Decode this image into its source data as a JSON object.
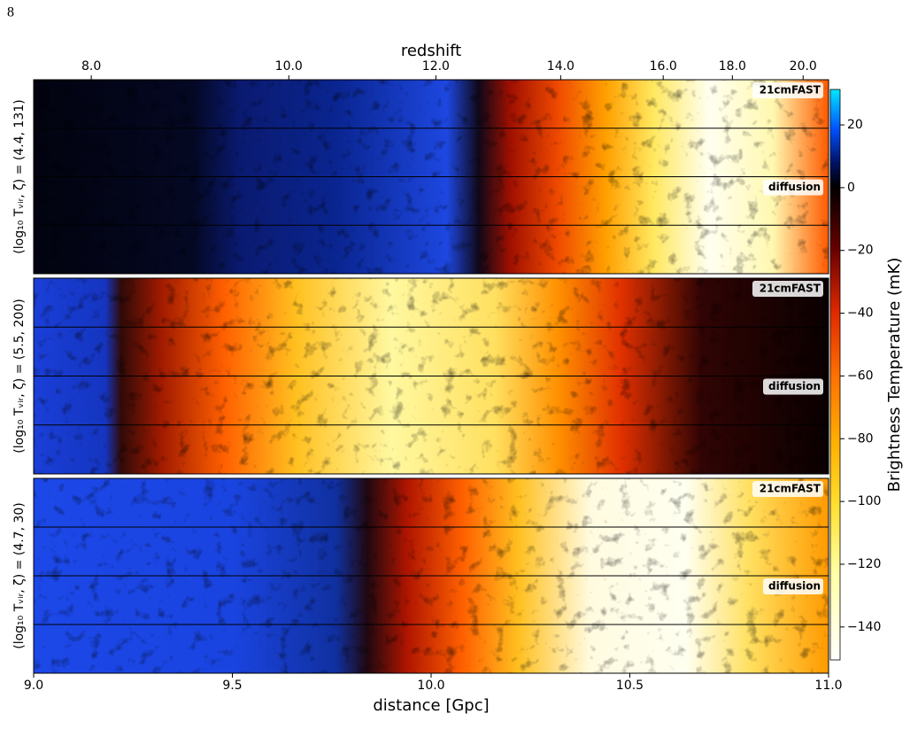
{
  "page_number": "8",
  "chart_data": {
    "type": "lightcone",
    "top_axis": {
      "label": "redshift",
      "ticks": [
        {
          "value": 9.145,
          "label": "8.0"
        },
        {
          "value": 9.642,
          "label": "10.0"
        },
        {
          "value": 10.012,
          "label": "12.0"
        },
        {
          "value": 10.326,
          "label": "14.0"
        },
        {
          "value": 10.584,
          "label": "16.0"
        },
        {
          "value": 10.758,
          "label": "18.0"
        },
        {
          "value": 10.936,
          "label": "20.0"
        }
      ]
    },
    "x_axis": {
      "label": "distance [Gpc]",
      "xlim": [
        9.0,
        11.0
      ],
      "xticks": [
        {
          "value": 9.0,
          "label": "9.0"
        },
        9.5,
        {
          "value": 10.0,
          "label": "10.0"
        },
        10.5,
        {
          "value": 11.0,
          "label": "11.0"
        }
      ]
    },
    "colorbar": {
      "label": "Brightness Temperature (mK)",
      "lim": [
        -150.5,
        31.3
      ],
      "ticks": [
        20,
        0,
        {
          "value": -20,
          "label": "−20"
        },
        {
          "value": -40,
          "label": "−40"
        },
        {
          "value": -60,
          "label": "−60"
        },
        {
          "value": -80,
          "label": "−80"
        },
        {
          "value": -100,
          "label": "−100"
        },
        {
          "value": -120,
          "label": "−120"
        },
        {
          "value": -140,
          "label": "−140"
        }
      ]
    },
    "panels": [
      {
        "row_label": "(log₁₀ Tᵥᵢᵣ, ζ) = (4.4, 131)",
        "color": "#2a9d7f",
        "sim_labels": [
          "21cmFAST",
          "diffusion"
        ]
      },
      {
        "row_label": "(log₁₀ Tᵥᵢᵣ, ζ) = (5.5, 200)",
        "color": "#d95f02",
        "sim_labels": [
          "21cmFAST",
          "diffusion"
        ]
      },
      {
        "row_label": "(log₁₀ Tᵥᵢᵣ, ζ) = (4.7, 30)",
        "color": "#8d87c0",
        "sim_labels": [
          "21cmFAST",
          "diffusion"
        ]
      }
    ]
  }
}
